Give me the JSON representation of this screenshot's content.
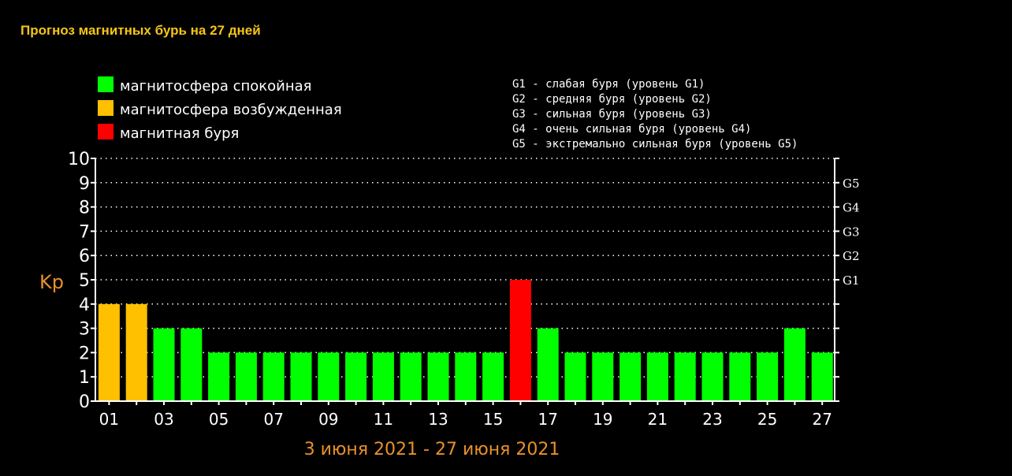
{
  "page": {
    "title": "Прогноз магнитных бурь на 27 дней"
  },
  "legend": [
    {
      "label": "магнитосфера спокойная",
      "color": "#00ff00"
    },
    {
      "label": "магнитосфера возбужденная",
      "color": "#ffc000"
    },
    {
      "label": "магнитная буря",
      "color": "#ff0000"
    }
  ],
  "storm_levels": [
    "G1 - слабая буря (уровень G1)",
    "G2 - средняя буря (уровень G2)",
    "G3 - сильная буря (уровень G3)",
    "G4 - очень сильная буря (уровень G4)",
    "G5 - экстремально сильная буря (уровень G5)"
  ],
  "chart_data": {
    "type": "bar",
    "title": "",
    "xlabel": "3 июня 2021 - 27 июня 2021",
    "ylabel": "Kp",
    "ylim": [
      0,
      10
    ],
    "grid": "dotted horizontal",
    "x_tick_labels": [
      "01",
      "03",
      "05",
      "07",
      "09",
      "11",
      "13",
      "15",
      "17",
      "19",
      "21",
      "23",
      "25",
      "27"
    ],
    "y_tick_labels": [
      "0",
      "1",
      "2",
      "3",
      "4",
      "5",
      "6",
      "7",
      "8",
      "9",
      "10"
    ],
    "right_axis": [
      {
        "label": "G1",
        "value": 5
      },
      {
        "label": "G2",
        "value": 6
      },
      {
        "label": "G3",
        "value": 7
      },
      {
        "label": "G4",
        "value": 8
      },
      {
        "label": "G5",
        "value": 9
      }
    ],
    "categories": [
      1,
      2,
      3,
      4,
      5,
      6,
      7,
      8,
      9,
      10,
      11,
      12,
      13,
      14,
      15,
      16,
      17,
      18,
      19,
      20,
      21,
      22,
      23,
      24,
      25,
      26,
      27
    ],
    "values": [
      4,
      4,
      3,
      3,
      2,
      2,
      2,
      2,
      2,
      2,
      2,
      2,
      2,
      2,
      2,
      5,
      3,
      2,
      2,
      2,
      2,
      2,
      2,
      2,
      2,
      3,
      2
    ],
    "bar_colors": [
      "#ffc000",
      "#ffc000",
      "#00ff00",
      "#00ff00",
      "#00ff00",
      "#00ff00",
      "#00ff00",
      "#00ff00",
      "#00ff00",
      "#00ff00",
      "#00ff00",
      "#00ff00",
      "#00ff00",
      "#00ff00",
      "#00ff00",
      "#ff0000",
      "#00ff00",
      "#00ff00",
      "#00ff00",
      "#00ff00",
      "#00ff00",
      "#00ff00",
      "#00ff00",
      "#00ff00",
      "#00ff00",
      "#00ff00",
      "#00ff00"
    ]
  }
}
